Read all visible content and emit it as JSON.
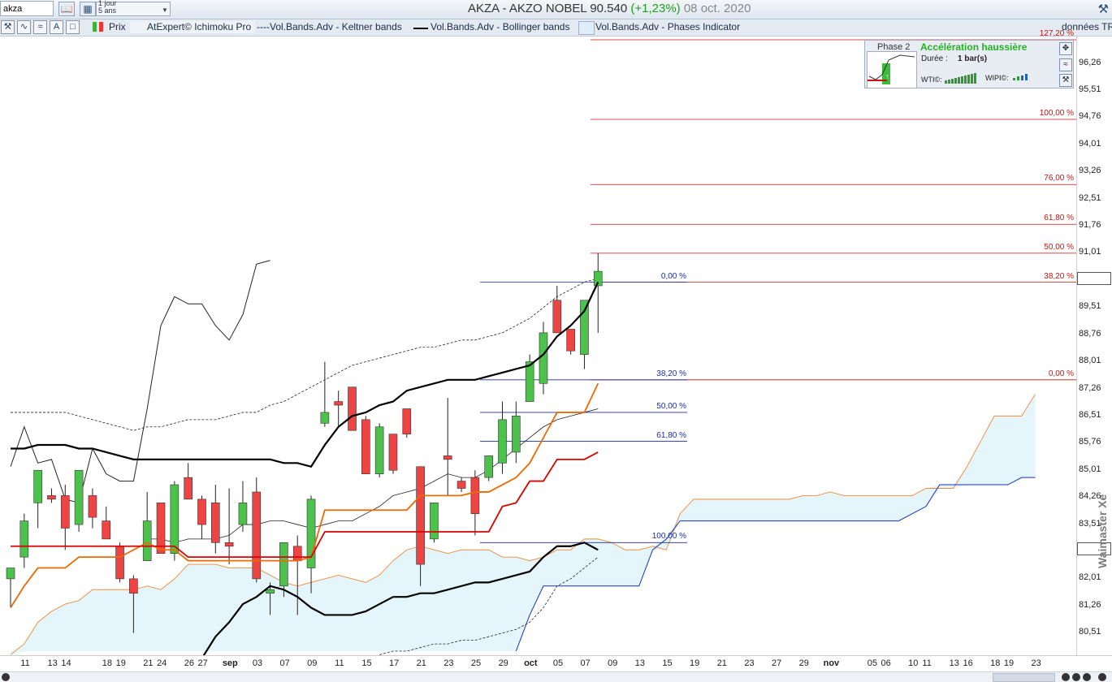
{
  "toolbar": {
    "symbol": "akza",
    "period_line1": "1 jour",
    "period_line2": "5 ans",
    "title_main": "AKZA - AKZO NOBEL   90.540",
    "title_change": "(+1,23%)",
    "title_date": "08 oct. 2020"
  },
  "indicators": {
    "price": "Prix",
    "ichimoku": "AtExpert© Ichimoku Pro",
    "keltner": "----Vol.Bands.Adv - Keltner bands",
    "bollinger": "Vol.Bands.Adv - Bollinger bands",
    "phases": "Vol.Bands.Adv - Phases Indicator",
    "data_source": "données TR"
  },
  "phase_panel": {
    "phase": "Phase 2",
    "title": "Accélération haussière",
    "duration_label": "Durée :",
    "duration_value": "1 bar(s)",
    "wti_label": "WTI©:",
    "wipi_label": "WIPI©:"
  },
  "watermark": "Waimaster Xe",
  "colors": {
    "bull_candle": "#4cc24c",
    "bear_candle": "#ee4444",
    "kijun": "#dd0000",
    "tenkan": "#ee6a00",
    "bollinger": "#000000",
    "keltner": "#222222",
    "cloud": "#e4f6fc",
    "fib_right": "#cc1111",
    "fib_left": "#1a2fa0"
  },
  "chart_data": {
    "type": "candlestick",
    "ylim": [
      80.0,
      96.9
    ],
    "y_ticks": [
      "96,26",
      "95,51",
      "94,76",
      "94,01",
      "93,26",
      "92,51",
      "91,76",
      "91,01",
      "89,51",
      "88,76",
      "88,01",
      "87,26",
      "86,51",
      "85,76",
      "85,01",
      "84,26",
      "83,51",
      "82,01",
      "81,26",
      "80,51"
    ],
    "x_ticks": [
      {
        "label": "11",
        "i": 0
      },
      {
        "label": "13",
        "i": 2
      },
      {
        "label": "14",
        "i": 3
      },
      {
        "label": "18",
        "i": 6
      },
      {
        "label": "19",
        "i": 7
      },
      {
        "label": "21",
        "i": 9
      },
      {
        "label": "24",
        "i": 10
      },
      {
        "label": "26",
        "i": 12
      },
      {
        "label": "27",
        "i": 13
      },
      {
        "label": "sep",
        "i": 15,
        "month": true
      },
      {
        "label": "03",
        "i": 17
      },
      {
        "label": "07",
        "i": 19
      },
      {
        "label": "09",
        "i": 21
      },
      {
        "label": "11",
        "i": 23
      },
      {
        "label": "15",
        "i": 25
      },
      {
        "label": "17",
        "i": 27
      },
      {
        "label": "21",
        "i": 29
      },
      {
        "label": "23",
        "i": 31
      },
      {
        "label": "25",
        "i": 33
      },
      {
        "label": "29",
        "i": 35
      },
      {
        "label": "oct",
        "i": 37,
        "month": true
      },
      {
        "label": "05",
        "i": 39
      },
      {
        "label": "07",
        "i": 41
      },
      {
        "label": "09",
        "i": 43
      },
      {
        "label": "13",
        "i": 45
      },
      {
        "label": "15",
        "i": 47
      },
      {
        "label": "19",
        "i": 49
      },
      {
        "label": "21",
        "i": 51
      },
      {
        "label": "23",
        "i": 53
      },
      {
        "label": "27",
        "i": 55
      },
      {
        "label": "29",
        "i": 57
      },
      {
        "label": "nov",
        "i": 59,
        "month": true
      },
      {
        "label": "05",
        "i": 62
      },
      {
        "label": "06",
        "i": 63
      },
      {
        "label": "10",
        "i": 65
      },
      {
        "label": "11",
        "i": 66
      },
      {
        "label": "13",
        "i": 68
      },
      {
        "label": "16",
        "i": 69
      },
      {
        "label": "18",
        "i": 71
      },
      {
        "label": "19",
        "i": 72
      },
      {
        "label": "23",
        "i": 74
      }
    ],
    "candles": [
      {
        "d": "11",
        "o": 82.0,
        "h": 82.3,
        "l": 81.2,
        "c": 82.3
      },
      {
        "d": "12",
        "o": 82.6,
        "h": 83.8,
        "l": 82.3,
        "c": 83.6
      },
      {
        "d": "13",
        "o": 84.1,
        "h": 85.0,
        "l": 83.4,
        "c": 85.0
      },
      {
        "d": "13b",
        "o": 84.3,
        "h": 84.5,
        "l": 84.1,
        "c": 84.2
      },
      {
        "d": "14",
        "o": 84.3,
        "h": 84.6,
        "l": 82.8,
        "c": 83.4
      },
      {
        "d": "17",
        "o": 83.5,
        "h": 85.0,
        "l": 83.3,
        "c": 85.0
      },
      {
        "d": "18",
        "o": 84.3,
        "h": 84.5,
        "l": 83.4,
        "c": 83.7
      },
      {
        "d": "19",
        "o": 83.6,
        "h": 84.0,
        "l": 83.1,
        "c": 83.1
      },
      {
        "d": "20",
        "o": 82.9,
        "h": 83.0,
        "l": 81.9,
        "c": 82.0
      },
      {
        "d": "21",
        "o": 82.0,
        "h": 82.1,
        "l": 80.5,
        "c": 81.6
      },
      {
        "d": "24",
        "o": 82.5,
        "h": 84.4,
        "l": 82.5,
        "c": 83.6
      },
      {
        "d": "25",
        "o": 84.1,
        "h": 84.1,
        "l": 82.8,
        "c": 82.7
      },
      {
        "d": "26",
        "o": 82.7,
        "h": 84.7,
        "l": 82.5,
        "c": 84.6
      },
      {
        "d": "27",
        "o": 84.8,
        "h": 85.2,
        "l": 84.2,
        "c": 84.2
      },
      {
        "d": "28",
        "o": 84.2,
        "h": 84.3,
        "l": 83.1,
        "c": 83.5
      },
      {
        "d": "31",
        "o": 84.1,
        "h": 84.6,
        "l": 82.7,
        "c": 83.0
      },
      {
        "d": "01",
        "o": 83.0,
        "h": 84.5,
        "l": 82.4,
        "c": 82.9
      },
      {
        "d": "03",
        "o": 83.5,
        "h": 84.7,
        "l": 83.3,
        "c": 84.1
      },
      {
        "d": "04",
        "o": 84.4,
        "h": 84.8,
        "l": 81.9,
        "c": 82.0
      },
      {
        "d": "07",
        "o": 81.6,
        "h": 81.9,
        "l": 81.0,
        "c": 81.7
      },
      {
        "d": "08",
        "o": 81.8,
        "h": 83.0,
        "l": 81.5,
        "c": 83.0
      },
      {
        "d": "09",
        "o": 82.9,
        "h": 83.2,
        "l": 81.0,
        "c": 82.5
      },
      {
        "d": "10",
        "o": 82.3,
        "h": 84.3,
        "l": 81.6,
        "c": 84.2
      },
      {
        "d": "11",
        "o": 86.3,
        "h": 88.0,
        "l": 86.2,
        "c": 86.6
      },
      {
        "d": "14",
        "o": 86.9,
        "h": 87.2,
        "l": 86.2,
        "c": 86.8
      },
      {
        "d": "15",
        "o": 87.3,
        "h": 87.3,
        "l": 86.1,
        "c": 86.1
      },
      {
        "d": "16",
        "o": 86.4,
        "h": 86.5,
        "l": 84.9,
        "c": 84.9
      },
      {
        "d": "17",
        "o": 84.9,
        "h": 86.3,
        "l": 84.8,
        "c": 86.2
      },
      {
        "d": "18",
        "o": 86.0,
        "h": 86.0,
        "l": 84.9,
        "c": 85.0
      },
      {
        "d": "21",
        "o": 86.7,
        "h": 86.6,
        "l": 85.9,
        "c": 86.0
      },
      {
        "d": "22",
        "o": 85.1,
        "h": 85.1,
        "l": 81.8,
        "c": 82.4
      },
      {
        "d": "23",
        "o": 83.1,
        "h": 84.1,
        "l": 83.0,
        "c": 84.1
      },
      {
        "d": "24",
        "o": 85.4,
        "h": 87.0,
        "l": 84.3,
        "c": 85.3
      },
      {
        "d": "25",
        "o": 84.7,
        "h": 84.8,
        "l": 84.4,
        "c": 84.5
      },
      {
        "d": "28",
        "o": 84.8,
        "h": 85.0,
        "l": 83.2,
        "c": 83.8
      },
      {
        "d": "29",
        "o": 84.8,
        "h": 85.4,
        "l": 84.7,
        "c": 85.4
      },
      {
        "d": "30",
        "o": 85.2,
        "h": 86.9,
        "l": 84.9,
        "c": 86.4
      },
      {
        "d": "01",
        "o": 85.5,
        "h": 86.9,
        "l": 85.2,
        "c": 86.5
      },
      {
        "d": "02",
        "o": 86.9,
        "h": 88.2,
        "l": 86.9,
        "c": 88.0
      },
      {
        "d": "05",
        "o": 87.4,
        "h": 89.1,
        "l": 87.1,
        "c": 88.8
      },
      {
        "d": "06",
        "o": 89.7,
        "h": 90.1,
        "l": 88.8,
        "c": 88.8
      },
      {
        "d": "07",
        "o": 88.9,
        "h": 88.9,
        "l": 88.2,
        "c": 88.3
      },
      {
        "d": "08",
        "o": 88.2,
        "h": 89.7,
        "l": 87.8,
        "c": 89.7
      },
      {
        "d": "09",
        "o": 90.1,
        "h": 91.0,
        "l": 88.8,
        "c": 90.5
      }
    ],
    "series": [
      {
        "key": "bb_upper",
        "values": [
          85.6,
          85.6,
          85.7,
          85.7,
          85.7,
          85.6,
          85.6,
          85.5,
          85.4,
          85.3,
          85.3,
          85.3,
          85.3,
          85.3,
          85.3,
          85.3,
          85.3,
          85.3,
          85.3,
          85.3,
          85.2,
          85.2,
          85.1,
          85.7,
          86.2,
          86.5,
          86.6,
          86.8,
          86.9,
          87.2,
          87.3,
          87.4,
          87.5,
          87.5,
          87.5,
          87.6,
          87.7,
          87.8,
          87.9,
          88.2,
          88.7,
          89.0,
          89.4,
          90.2
        ]
      },
      {
        "key": "bb_mid",
        "values": [
          null,
          null,
          null,
          null,
          null,
          null,
          null,
          null,
          null,
          null,
          83.1,
          83.1,
          83.0,
          83.1,
          83.1,
          83.1,
          83.2,
          83.5,
          83.5,
          83.6,
          83.6,
          83.5,
          83.4,
          83.5,
          83.6,
          83.6,
          83.8,
          84.0,
          84.3,
          84.4,
          84.5,
          84.7,
          84.9,
          84.8,
          84.8,
          85.0,
          85.3,
          85.6,
          85.9,
          86.2,
          86.4,
          86.5,
          86.6,
          86.7
        ]
      },
      {
        "key": "bb_lower",
        "values": [
          null,
          null,
          null,
          null,
          null,
          null,
          null,
          null,
          null,
          null,
          null,
          null,
          null,
          null,
          79.8,
          80.4,
          80.8,
          81.3,
          81.5,
          81.8,
          81.7,
          81.5,
          81.2,
          81.0,
          81.0,
          81.0,
          81.1,
          81.3,
          81.5,
          81.5,
          81.6,
          81.6,
          81.7,
          81.8,
          81.9,
          81.9,
          82.0,
          82.1,
          82.2,
          82.6,
          82.9,
          82.9,
          83.0,
          82.8
        ]
      },
      {
        "key": "kc_upper",
        "values": [
          86.6,
          86.6,
          86.6,
          86.6,
          86.6,
          86.5,
          86.4,
          86.3,
          86.2,
          86.1,
          86.2,
          86.2,
          86.3,
          86.4,
          86.4,
          86.4,
          86.5,
          86.6,
          86.6,
          86.8,
          86.9,
          87.1,
          87.3,
          87.5,
          87.7,
          87.9,
          88.0,
          88.1,
          88.2,
          88.3,
          88.4,
          88.4,
          88.5,
          88.6,
          88.6,
          88.7,
          88.8,
          89.0,
          89.2,
          89.5,
          89.8,
          90.0,
          90.2,
          90.3
        ]
      },
      {
        "key": "kc_lower",
        "values": [
          null,
          null,
          null,
          null,
          null,
          null,
          null,
          null,
          null,
          null,
          null,
          null,
          null,
          null,
          null,
          null,
          null,
          null,
          null,
          null,
          null,
          null,
          null,
          null,
          null,
          null,
          null,
          79.9,
          80.0,
          80.0,
          80.1,
          80.2,
          80.2,
          80.3,
          80.3,
          80.4,
          80.5,
          80.6,
          80.8,
          81.2,
          81.8,
          82.0,
          82.3,
          82.6
        ]
      },
      {
        "key": "chikou",
        "values": [
          85.1,
          86.2,
          85.2,
          85.3,
          84.2,
          84.1,
          85.6,
          84.9,
          84.7,
          84.7,
          86.7,
          89.0,
          89.8,
          89.6,
          89.6,
          89.0,
          88.6,
          89.3,
          90.7,
          90.8
        ]
      },
      {
        "key": "kijun",
        "values": [
          82.9,
          82.9,
          82.9,
          82.9,
          82.9,
          82.9,
          82.9,
          82.9,
          82.9,
          82.9,
          82.9,
          82.9,
          82.9,
          82.6,
          82.6,
          82.6,
          82.6,
          82.6,
          82.6,
          82.6,
          82.6,
          82.6,
          82.6,
          83.3,
          83.3,
          83.3,
          83.3,
          83.3,
          83.3,
          83.3,
          83.3,
          83.3,
          83.3,
          83.3,
          83.3,
          83.3,
          84.0,
          84.1,
          84.7,
          84.7,
          85.3,
          85.3,
          85.3,
          85.5
        ]
      },
      {
        "key": "tenkan",
        "values": [
          81.2,
          81.8,
          82.3,
          82.3,
          82.3,
          82.6,
          82.6,
          82.6,
          82.6,
          82.8,
          83.0,
          82.8,
          82.8,
          82.5,
          82.5,
          82.5,
          82.5,
          82.5,
          82.5,
          82.5,
          82.5,
          82.5,
          82.6,
          83.9,
          83.9,
          83.9,
          83.9,
          83.9,
          83.9,
          83.9,
          84.3,
          84.3,
          84.3,
          84.3,
          84.4,
          84.4,
          84.6,
          84.8,
          85.2,
          85.9,
          86.6,
          86.6,
          86.6,
          87.4
        ]
      },
      {
        "key": "ssa",
        "values": [
          79.9,
          80.2,
          80.8,
          81.1,
          81.3,
          81.4,
          81.7,
          81.7,
          81.7,
          81.7,
          81.8,
          81.7,
          82.0,
          82.4,
          82.4,
          82.4,
          82.3,
          82.3,
          82.3,
          82.1,
          81.9,
          81.8,
          81.9,
          82.0,
          82.1,
          82.0,
          81.9,
          82.1,
          82.5,
          82.8,
          82.9,
          82.8,
          82.7,
          82.8,
          82.8,
          82.8,
          82.6,
          82.6,
          82.5,
          82.6,
          82.8,
          82.8,
          83.1,
          83.1,
          83.0,
          82.8,
          82.8,
          82.9,
          82.8,
          83.8,
          84.2,
          84.2,
          84.2,
          84.2,
          84.2,
          84.2,
          84.2,
          84.2,
          84.3,
          84.3,
          84.4,
          84.3,
          84.3,
          84.3,
          84.3,
          84.3,
          84.3,
          84.5,
          84.5,
          84.5,
          85.1,
          85.8,
          86.5,
          86.5,
          86.5,
          87.1
        ]
      },
      {
        "key": "ssb",
        "values": [
          null,
          null,
          null,
          null,
          null,
          null,
          null,
          null,
          null,
          null,
          null,
          null,
          null,
          null,
          null,
          null,
          null,
          null,
          null,
          null,
          null,
          null,
          null,
          null,
          null,
          null,
          null,
          null,
          null,
          null,
          null,
          null,
          null,
          null,
          null,
          null,
          null,
          80.0,
          81.0,
          81.8,
          81.8,
          81.8,
          81.8,
          81.8,
          81.8,
          81.8,
          81.8,
          82.8,
          83.1,
          83.6,
          83.6,
          83.6,
          83.6,
          83.6,
          83.6,
          83.6,
          83.6,
          83.6,
          83.6,
          83.6,
          83.6,
          83.6,
          83.6,
          83.6,
          83.6,
          83.6,
          83.8,
          84.0,
          84.6,
          84.6,
          84.6,
          84.6,
          84.6,
          84.6,
          84.8,
          84.8
        ]
      }
    ],
    "fib_right": [
      {
        "label": "127,20 %",
        "y": 96.9
      },
      {
        "label": "100,00 %",
        "y": 94.7
      },
      {
        "label": "76,00 %",
        "y": 92.9
      },
      {
        "label": "61,80 %",
        "y": 91.8
      },
      {
        "label": "50,00 %",
        "y": 91.0
      },
      {
        "label": "38,20 %",
        "y": 90.2
      },
      {
        "label": "0,00 %",
        "y": 87.5
      }
    ],
    "fib_left": [
      {
        "label": "0,00 %",
        "y": 90.2
      },
      {
        "label": "38,20 %",
        "y": 87.5
      },
      {
        "label": "50,00 %",
        "y": 86.6
      },
      {
        "label": "61,80 %",
        "y": 85.8
      },
      {
        "label": "100,00 %",
        "y": 83.0
      }
    ]
  }
}
